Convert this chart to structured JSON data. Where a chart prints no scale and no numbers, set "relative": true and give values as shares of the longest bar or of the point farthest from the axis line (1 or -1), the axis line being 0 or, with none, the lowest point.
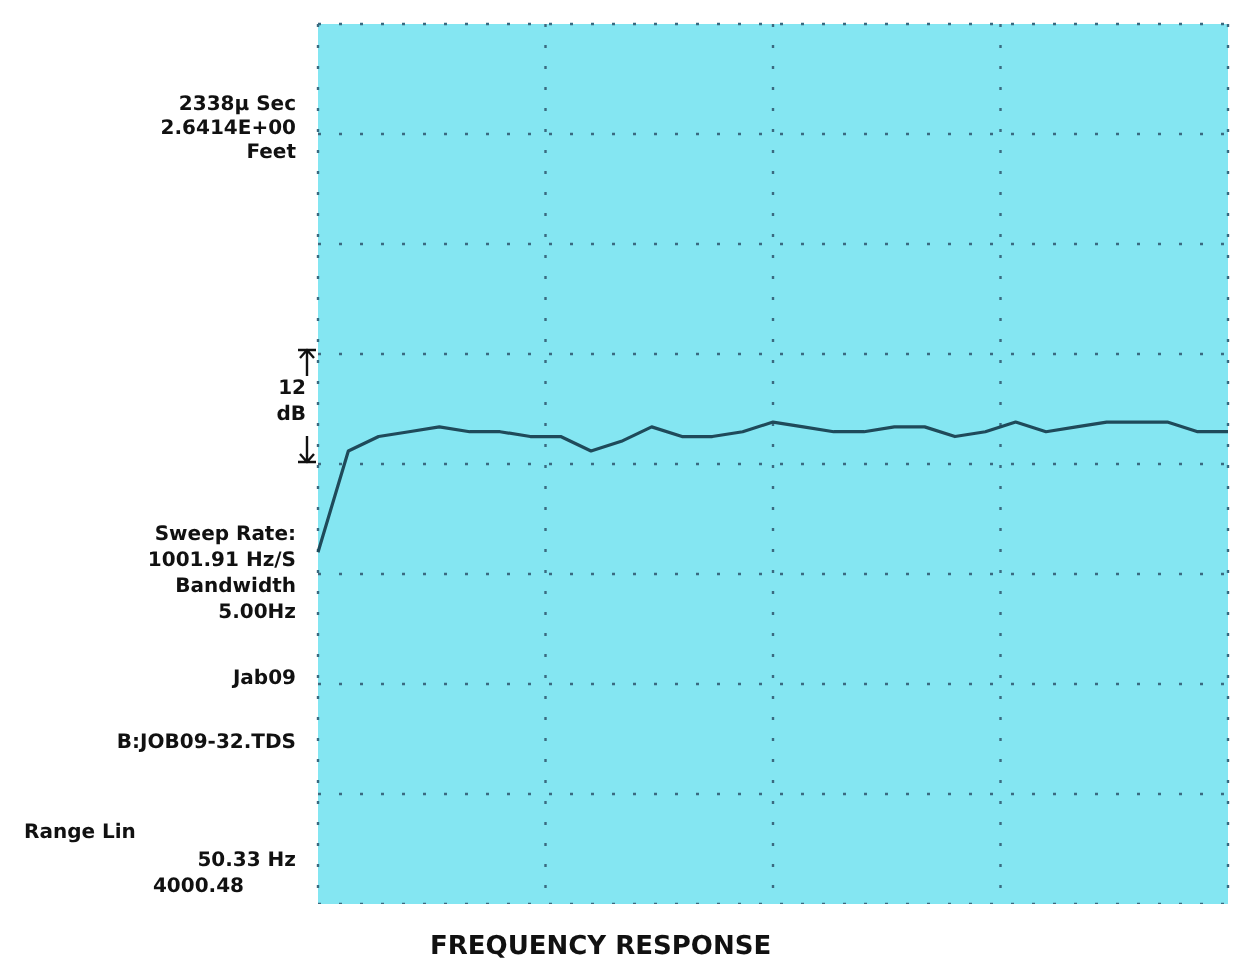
{
  "chart_data": {
    "type": "line",
    "title": "FREQUENCY RESPONSE",
    "relative": true,
    "grid": true,
    "legend": false,
    "tick_labels": false,
    "marker": "none",
    "line_style": "solid",
    "annotations": [
      "2338μ Sec",
      "2.6414E+00",
      "Feet",
      "12",
      "dB",
      "Sweep Rate:",
      "1001.91 Hz/S",
      "Bandwidth",
      "5.00Hz",
      "Jab09",
      "B:JOB09-32.TDS",
      "Range Lin",
      "50.33 Hz",
      "4000.48"
    ],
    "categories": [
      null,
      null,
      null,
      null,
      null,
      null,
      null,
      null,
      null,
      null,
      null,
      null,
      null,
      null,
      null,
      null,
      null,
      null,
      null,
      null,
      null,
      null,
      null,
      null,
      null,
      null,
      null,
      null,
      null,
      null,
      null
    ],
    "series": [
      {
        "color": "#1f4a5a",
        "values": [
          0.73,
          0.94,
          0.97,
          0.98,
          0.99,
          0.98,
          0.98,
          0.97,
          0.97,
          0.94,
          0.96,
          0.99,
          0.97,
          0.97,
          0.98,
          1.0,
          0.99,
          0.98,
          0.98,
          0.99,
          0.99,
          0.97,
          0.98,
          1.0,
          0.98,
          0.99,
          1.0,
          1.0,
          1.0,
          0.98,
          0.98
        ]
      }
    ]
  }
}
